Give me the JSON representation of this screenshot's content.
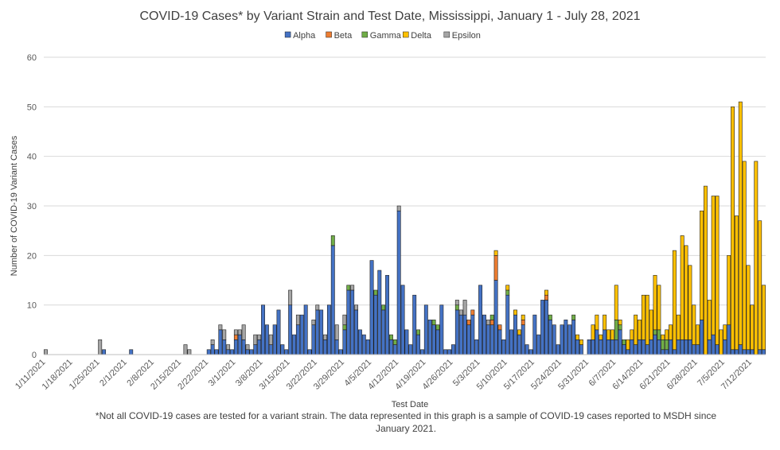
{
  "chart_data": {
    "type": "bar",
    "stacked": true,
    "title": "COVID-19 Cases* by Variant Strain and Test Date, Mississippi, January 1 - July 28, 2021",
    "xlabel": "Test Date",
    "ylabel": "Number of COVID-19 Variant Cases",
    "ylim": [
      0,
      60
    ],
    "yticks": [
      0,
      10,
      20,
      30,
      40,
      50,
      60
    ],
    "grid": true,
    "legend_position": "top",
    "x_start": "2021-01-11",
    "x_tick_labels": [
      "1/11/2021",
      "1/18/2021",
      "1/25/2021",
      "2/1/2021",
      "2/8/2021",
      "2/15/2021",
      "2/22/2021",
      "3/1/2021",
      "3/8/2021",
      "3/15/2021",
      "3/22/2021",
      "3/29/2021",
      "4/5/2021",
      "4/12/2021",
      "4/19/2021",
      "4/26/2021",
      "5/3/2021",
      "5/10/2021",
      "5/17/2021",
      "5/24/2021",
      "5/31/2021",
      "6/7/2021",
      "6/14/2021",
      "6/21/2021",
      "6/28/2021",
      "7/5/2021",
      "7/12/2021"
    ],
    "series": [
      {
        "name": "Alpha",
        "color": "#4472C4",
        "values": [
          0,
          0,
          0,
          0,
          0,
          0,
          0,
          0,
          0,
          0,
          0,
          0,
          0,
          0,
          0,
          1,
          0,
          0,
          0,
          0,
          0,
          0,
          1,
          0,
          0,
          0,
          0,
          0,
          0,
          0,
          0,
          0,
          0,
          0,
          0,
          0,
          0,
          0,
          0,
          0,
          0,
          0,
          1,
          2,
          1,
          5,
          3,
          1,
          1,
          3,
          4,
          3,
          1,
          1,
          2,
          3,
          10,
          6,
          2,
          6,
          9,
          2,
          1,
          10,
          4,
          6,
          8,
          10,
          1,
          6,
          9,
          9,
          3,
          10,
          22,
          3,
          1,
          5,
          13,
          13,
          9,
          5,
          4,
          3,
          19,
          12,
          17,
          9,
          16,
          3,
          2,
          29,
          14,
          5,
          2,
          12,
          4,
          1,
          10,
          7,
          6,
          5,
          10,
          1,
          1,
          2,
          9,
          8,
          8,
          6,
          8,
          3,
          14,
          8,
          6,
          6,
          15,
          5,
          3,
          12,
          5,
          8,
          4,
          6,
          2,
          1,
          8,
          4,
          11,
          11,
          7,
          6,
          2,
          6,
          7,
          6,
          7,
          3,
          2,
          0,
          3,
          3,
          5,
          3,
          5,
          3,
          3,
          3,
          5,
          2,
          1,
          3,
          2,
          3,
          3,
          2,
          3,
          4,
          3,
          1,
          1,
          3,
          1,
          3,
          3,
          3,
          3,
          2,
          2,
          7,
          0,
          3,
          4,
          2,
          0,
          3,
          6,
          1,
          1,
          2,
          1,
          1,
          1,
          0,
          1,
          1
        ]
      },
      {
        "name": "Beta",
        "color": "#ED7D31",
        "values": [
          0,
          0,
          0,
          0,
          0,
          0,
          0,
          0,
          0,
          0,
          0,
          0,
          0,
          0,
          0,
          0,
          0,
          0,
          0,
          0,
          0,
          0,
          0,
          0,
          0,
          0,
          0,
          0,
          0,
          0,
          0,
          0,
          0,
          0,
          0,
          0,
          0,
          0,
          0,
          0,
          0,
          0,
          0,
          0,
          0,
          0,
          0,
          0,
          0,
          1,
          0,
          0,
          0,
          0,
          0,
          0,
          0,
          0,
          0,
          0,
          0,
          0,
          0,
          0,
          0,
          0,
          0,
          0,
          0,
          0,
          0,
          0,
          0,
          0,
          0,
          0,
          0,
          0,
          0,
          0,
          0,
          0,
          0,
          0,
          0,
          0,
          0,
          0,
          0,
          0,
          0,
          0,
          0,
          0,
          0,
          0,
          0,
          0,
          0,
          0,
          0,
          0,
          0,
          0,
          0,
          0,
          0,
          0,
          0,
          1,
          1,
          0,
          0,
          0,
          0,
          1,
          5,
          1,
          0,
          0,
          0,
          0,
          0,
          1,
          0,
          0,
          0,
          0,
          0,
          1,
          0,
          0,
          0,
          0,
          0,
          0,
          0,
          0,
          0,
          0,
          0,
          0,
          0,
          0,
          0,
          0,
          0,
          0,
          0,
          0,
          0,
          0,
          0,
          0,
          0,
          0,
          0,
          0,
          0,
          0,
          0,
          0,
          0,
          0,
          0,
          0,
          0,
          0,
          0,
          0,
          0,
          0,
          0,
          0,
          0,
          0,
          0,
          0,
          0,
          0,
          0,
          0,
          0,
          0,
          0,
          0
        ]
      },
      {
        "name": "Gamma",
        "color": "#70AD47",
        "values": [
          0,
          0,
          0,
          0,
          0,
          0,
          0,
          0,
          0,
          0,
          0,
          0,
          0,
          0,
          0,
          0,
          0,
          0,
          0,
          0,
          0,
          0,
          0,
          0,
          0,
          0,
          0,
          0,
          0,
          0,
          0,
          0,
          0,
          0,
          0,
          0,
          0,
          0,
          0,
          0,
          0,
          0,
          0,
          0,
          0,
          0,
          0,
          0,
          0,
          0,
          0,
          0,
          0,
          0,
          0,
          0,
          0,
          0,
          0,
          0,
          0,
          0,
          0,
          0,
          0,
          0,
          0,
          0,
          0,
          0,
          0,
          0,
          0,
          0,
          2,
          0,
          0,
          1,
          1,
          0,
          0,
          0,
          0,
          0,
          0,
          1,
          0,
          1,
          0,
          1,
          1,
          0,
          0,
          0,
          0,
          0,
          1,
          0,
          0,
          0,
          1,
          1,
          0,
          0,
          0,
          0,
          1,
          0,
          0,
          0,
          0,
          0,
          0,
          0,
          0,
          1,
          0,
          0,
          0,
          1,
          0,
          0,
          0,
          0,
          0,
          0,
          0,
          0,
          0,
          0,
          1,
          0,
          0,
          0,
          0,
          0,
          1,
          0,
          0,
          0,
          0,
          0,
          0,
          0,
          0,
          0,
          0,
          4,
          1,
          1,
          0,
          0,
          0,
          0,
          0,
          0,
          0,
          1,
          2,
          2,
          2,
          0,
          0,
          0,
          0,
          0,
          0,
          0,
          0,
          0,
          0,
          0,
          0,
          0,
          0,
          0,
          0,
          0,
          0,
          0,
          0,
          0,
          0,
          0,
          0,
          0
        ]
      },
      {
        "name": "Delta",
        "color": "#FFC000",
        "values": [
          0,
          0,
          0,
          0,
          0,
          0,
          0,
          0,
          0,
          0,
          0,
          0,
          0,
          0,
          0,
          0,
          0,
          0,
          0,
          0,
          0,
          0,
          0,
          0,
          0,
          0,
          0,
          0,
          0,
          0,
          0,
          0,
          0,
          0,
          0,
          0,
          0,
          0,
          0,
          0,
          0,
          0,
          0,
          0,
          0,
          0,
          0,
          0,
          0,
          0,
          0,
          0,
          0,
          0,
          0,
          0,
          0,
          0,
          0,
          0,
          0,
          0,
          0,
          0,
          0,
          0,
          0,
          0,
          0,
          0,
          0,
          0,
          0,
          0,
          0,
          0,
          0,
          0,
          0,
          0,
          0,
          0,
          0,
          0,
          0,
          0,
          0,
          0,
          0,
          0,
          0,
          0,
          0,
          0,
          0,
          0,
          0,
          0,
          0,
          0,
          0,
          0,
          0,
          0,
          0,
          0,
          0,
          0,
          0,
          0,
          0,
          0,
          0,
          0,
          0,
          0,
          1,
          0,
          0,
          1,
          0,
          1,
          1,
          1,
          0,
          0,
          0,
          0,
          0,
          1,
          0,
          0,
          0,
          0,
          0,
          0,
          0,
          1,
          1,
          0,
          0,
          3,
          3,
          1,
          3,
          2,
          2,
          7,
          1,
          0,
          2,
          2,
          6,
          4,
          9,
          10,
          6,
          11,
          9,
          1,
          2,
          3,
          20,
          5,
          21,
          19,
          15,
          8,
          4,
          22,
          34,
          8,
          28,
          30,
          5,
          3,
          14,
          49,
          27,
          49,
          38,
          17,
          9,
          39,
          26,
          13
        ]
      },
      {
        "name": "Epsilon",
        "color": "#A5A5A5",
        "values": [
          1,
          0,
          0,
          0,
          0,
          0,
          0,
          0,
          0,
          0,
          0,
          0,
          0,
          0,
          3,
          0,
          0,
          0,
          0,
          0,
          0,
          0,
          0,
          0,
          0,
          0,
          0,
          0,
          0,
          0,
          0,
          0,
          0,
          0,
          0,
          0,
          2,
          1,
          0,
          0,
          0,
          0,
          0,
          1,
          0,
          1,
          2,
          1,
          0,
          1,
          1,
          3,
          1,
          0,
          2,
          1,
          0,
          0,
          2,
          0,
          0,
          0,
          0,
          3,
          0,
          2,
          0,
          0,
          0,
          1,
          1,
          0,
          1,
          0,
          0,
          3,
          0,
          2,
          0,
          1,
          1,
          0,
          0,
          0,
          0,
          0,
          0,
          0,
          0,
          0,
          0,
          1,
          0,
          0,
          0,
          0,
          0,
          0,
          0,
          0,
          0,
          0,
          0,
          0,
          0,
          0,
          1,
          1,
          3,
          0,
          0,
          0,
          0,
          0,
          1,
          0,
          0,
          0,
          0,
          0,
          0,
          0,
          0,
          0,
          0,
          0,
          0,
          0,
          0,
          0,
          0,
          0,
          0,
          0,
          0,
          0,
          0,
          0,
          0,
          0,
          0,
          0,
          0,
          0,
          0,
          0,
          0,
          0,
          0,
          0,
          0,
          0,
          0,
          0,
          0,
          0,
          0,
          0,
          0,
          0,
          0,
          0,
          0,
          0,
          0,
          0,
          0,
          0,
          0,
          0,
          0,
          0,
          0,
          0,
          0,
          0,
          0,
          0,
          0,
          0,
          0,
          0,
          0,
          0,
          0,
          0
        ]
      }
    ]
  },
  "footnote": "*Not all COVID-19 cases are tested for a variant strain. The data represented in this graph is a sample of COVID-19 cases reported to MSDH since January 2021."
}
